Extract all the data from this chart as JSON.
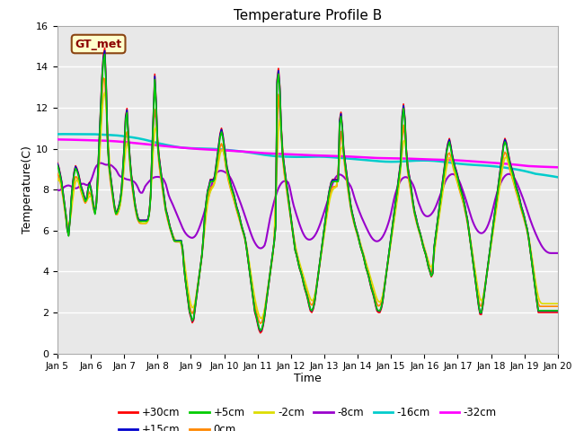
{
  "title": "Temperature Profile B",
  "xlabel": "Time",
  "ylabel": "Temperature(C)",
  "annotation": "GT_met",
  "ylim": [
    0,
    16
  ],
  "bg_color": "#e8e8e8",
  "series_colors": {
    "+30cm": "#ff0000",
    "+15cm": "#0000cd",
    "+5cm": "#00cc00",
    "0cm": "#ff8800",
    "-2cm": "#dddd00",
    "-8cm": "#9900cc",
    "-16cm": "#00cccc",
    "-32cm": "#ff00ff"
  },
  "tick_labels": [
    "Jan 5",
    "Jan 6",
    "Jan 7",
    "Jan 8",
    "Jan 9",
    "Jan 10",
    "Jan 11",
    "Jan 12",
    "Jan 13",
    "Jan 14",
    "Jan 15",
    "Jan 16",
    "Jan 17",
    "Jan 18",
    "Jan 19",
    "Jan 20"
  ],
  "tick_positions": [
    0,
    24,
    48,
    72,
    96,
    120,
    144,
    168,
    192,
    216,
    240,
    264,
    288,
    312,
    336,
    360
  ],
  "yticks": [
    0,
    2,
    4,
    6,
    8,
    10,
    12,
    14,
    16
  ],
  "lw_surface": 1.2,
  "lw_deep": 1.5
}
